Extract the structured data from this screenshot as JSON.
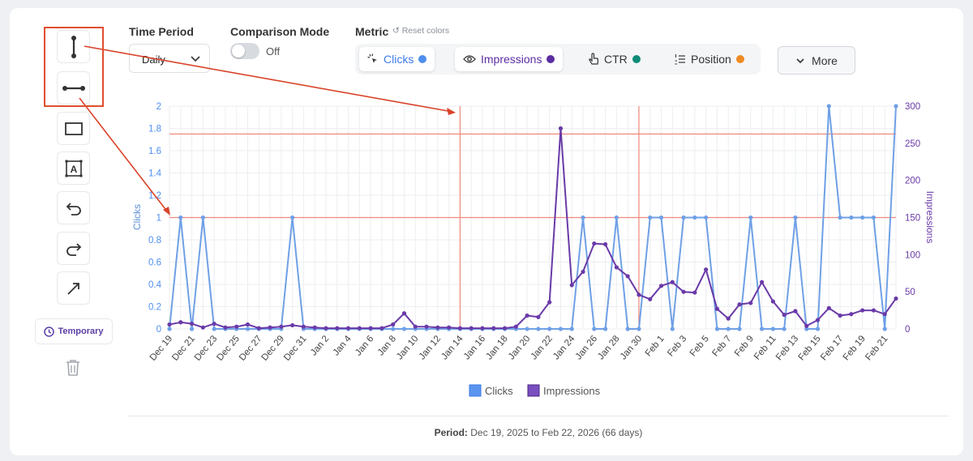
{
  "toolbar": {
    "tools": [
      {
        "name": "vertical-line-icon"
      },
      {
        "name": "horizontal-line-icon"
      },
      {
        "name": "rectangle-icon"
      },
      {
        "name": "text-box-icon"
      },
      {
        "name": "undo-icon"
      },
      {
        "name": "redo-icon"
      },
      {
        "name": "arrow-icon"
      }
    ],
    "temporary_label": "Temporary",
    "delete_icon": "trash-icon"
  },
  "controls": {
    "time_period_label": "Time Period",
    "time_period_value": "Daily",
    "comparison_label": "Comparison Mode",
    "comparison_state": "Off",
    "metric_label": "Metric",
    "reset_colors": "↺ Reset colors",
    "metrics": [
      {
        "label": "Clicks",
        "color": "#4f8ff0",
        "text_color": "#3d7be6",
        "active": true,
        "icon": "cursor-click-icon"
      },
      {
        "label": "Impressions",
        "color": "#5b2da0",
        "text_color": "#5b2da0",
        "active": true,
        "icon": "eye-icon"
      },
      {
        "label": "CTR",
        "color": "#0f8a78",
        "text_color": "#333333",
        "active": false,
        "icon": "pointer-hand-icon"
      },
      {
        "label": "Position",
        "color": "#ee8a22",
        "text_color": "#333333",
        "active": false,
        "icon": "list-ordered-icon"
      }
    ],
    "more_label": "More"
  },
  "chart_data": {
    "type": "line",
    "x": [
      "Dec 19",
      "Dec 20",
      "Dec 21",
      "Dec 22",
      "Dec 23",
      "Dec 24",
      "Dec 25",
      "Dec 26",
      "Dec 27",
      "Dec 28",
      "Dec 29",
      "Dec 30",
      "Dec 31",
      "Jan 1",
      "Jan 2",
      "Jan 3",
      "Jan 4",
      "Jan 5",
      "Jan 6",
      "Jan 7",
      "Jan 8",
      "Jan 9",
      "Jan 10",
      "Jan 11",
      "Jan 12",
      "Jan 13",
      "Jan 14",
      "Jan 15",
      "Jan 16",
      "Jan 17",
      "Jan 18",
      "Jan 19",
      "Jan 20",
      "Jan 21",
      "Jan 22",
      "Jan 23",
      "Jan 24",
      "Jan 25",
      "Jan 26",
      "Jan 27",
      "Jan 28",
      "Jan 29",
      "Jan 30",
      "Jan 31",
      "Feb 1",
      "Feb 2",
      "Feb 3",
      "Feb 4",
      "Feb 5",
      "Feb 6",
      "Feb 7",
      "Feb 8",
      "Feb 9",
      "Feb 10",
      "Feb 11",
      "Feb 12",
      "Feb 13",
      "Feb 14",
      "Feb 15",
      "Feb 16",
      "Feb 17",
      "Feb 18",
      "Feb 19",
      "Feb 20",
      "Feb 21",
      "Feb 22"
    ],
    "tick_labels": [
      "Dec 19",
      "Dec 21",
      "Dec 23",
      "Dec 25",
      "Dec 27",
      "Dec 29",
      "Dec 31",
      "Jan 2",
      "Jan 4",
      "Jan 6",
      "Jan 8",
      "Jan 10",
      "Jan 12",
      "Jan 14",
      "Jan 16",
      "Jan 18",
      "Jan 20",
      "Jan 22",
      "Jan 24",
      "Jan 26",
      "Jan 28",
      "Jan 30",
      "Feb 1",
      "Feb 3",
      "Feb 5",
      "Feb 7",
      "Feb 9",
      "Feb 11",
      "Feb 13",
      "Feb 15",
      "Feb 17",
      "Feb 19",
      "Feb 21"
    ],
    "series": [
      {
        "name": "Clicks",
        "axis": "left",
        "color": "#6fa0e6",
        "values": [
          0,
          1,
          0,
          1,
          0,
          0,
          0,
          0,
          0,
          0,
          0,
          1,
          0,
          0,
          0,
          0,
          0,
          0,
          0,
          0,
          0,
          0,
          0,
          0,
          0,
          0,
          0,
          0,
          0,
          0,
          0,
          0,
          0,
          0,
          0,
          0,
          0,
          1,
          0,
          0,
          1,
          0,
          0,
          1,
          1,
          0,
          1,
          1,
          1,
          0,
          0,
          0,
          1,
          0,
          0,
          0,
          1,
          0,
          0,
          2,
          1,
          1,
          1,
          1,
          0,
          2
        ]
      },
      {
        "name": "Impressions",
        "axis": "right",
        "color": "#6a3aa8",
        "values": [
          6,
          9,
          7,
          2,
          7,
          2,
          3,
          6,
          1,
          2,
          3,
          5,
          3,
          2,
          1,
          1,
          1,
          1,
          1,
          1,
          6,
          21,
          3,
          3,
          2,
          2,
          1,
          1,
          1,
          1,
          1,
          3,
          18,
          16,
          36,
          270,
          59,
          77,
          115,
          114,
          83,
          71,
          46,
          40,
          58,
          63,
          50,
          49,
          80,
          27,
          14,
          33,
          35,
          63,
          37,
          19,
          24,
          4,
          12,
          28,
          18,
          20,
          25,
          25,
          20,
          41
        ]
      }
    ],
    "y_left": {
      "label": "Clicks",
      "min": 0,
      "max": 2,
      "ticks": [
        "0",
        "0.2",
        "0.4",
        "0.6",
        "0.8",
        "1",
        "1.2",
        "1.4",
        "1.6",
        "1.8",
        "2"
      ]
    },
    "y_right": {
      "label": "Impressions",
      "min": 0,
      "max": 300,
      "ticks": [
        "0",
        "50",
        "100",
        "150",
        "200",
        "250",
        "300"
      ]
    },
    "annotations": {
      "horizontal_lines_clicks": [
        1,
        1.75
      ],
      "vertical_lines_at": [
        "Jan 14",
        "Jan 30"
      ]
    },
    "legend": [
      {
        "label": "Clicks",
        "color": "#5b95f0"
      },
      {
        "label": "Impressions",
        "color": "#6a3aa8"
      }
    ],
    "legend_position": "bottom"
  },
  "footer": {
    "period_label": "Period:",
    "period_value": "Dec 19, 2025 to Feb 22, 2026 (66 days)"
  }
}
